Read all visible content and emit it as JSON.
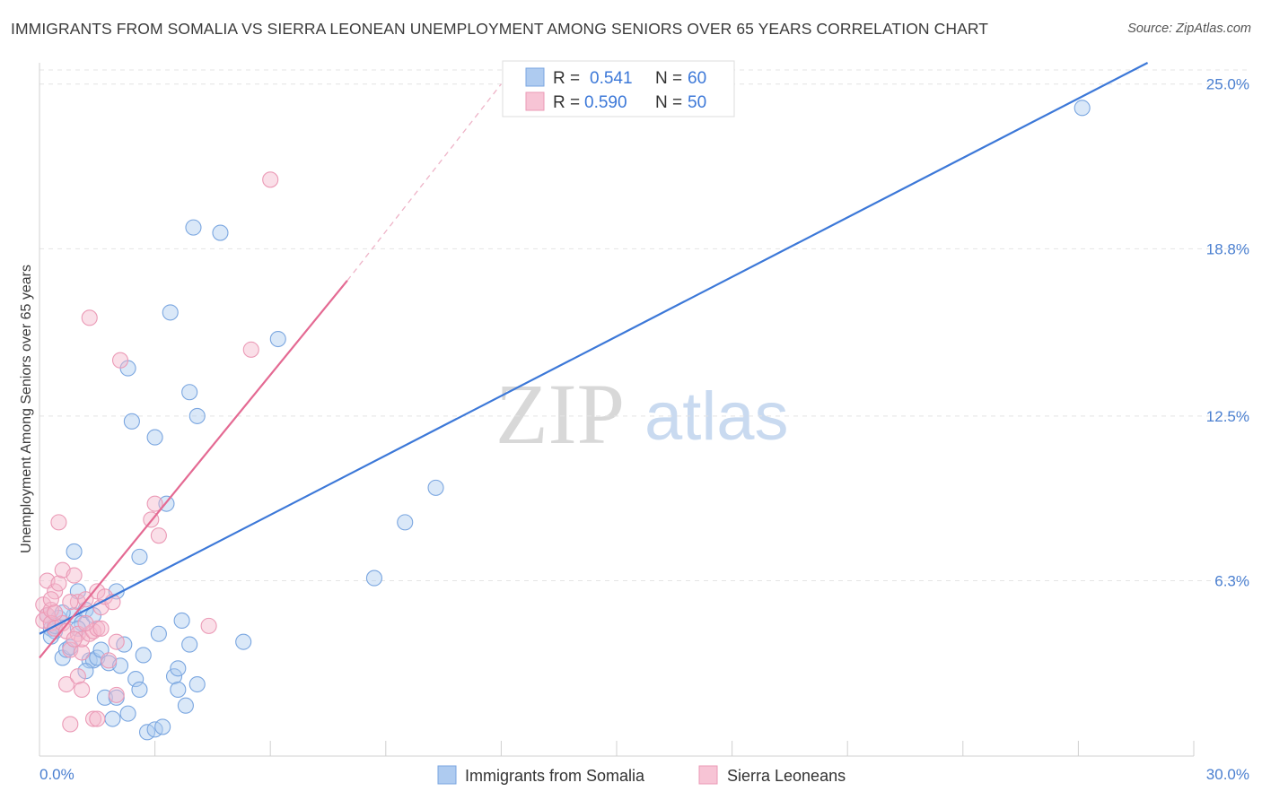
{
  "title": "IMMIGRANTS FROM SOMALIA VS SIERRA LEONEAN UNEMPLOYMENT AMONG SENIORS OVER 65 YEARS CORRELATION CHART",
  "source": "Source: ZipAtlas.com",
  "watermark": {
    "zip": "ZIP",
    "atlas": "atlas"
  },
  "colors": {
    "blue": "#3c78d8",
    "blue_fill": "#aecbf0",
    "pink": "#e46a93",
    "pink_fill": "#f5b8cc",
    "tick_text": "#4a7fd0"
  },
  "legend": {
    "r_label": "R =",
    "n_label": "N =",
    "series1_r": "0.541",
    "series1_n": "60",
    "series2_r": "0.590",
    "series2_n": "50"
  },
  "chart_data": {
    "type": "scatter",
    "title": "IMMIGRANTS FROM SOMALIA VS SIERRA LEONEAN UNEMPLOYMENT AMONG SENIORS OVER 65 YEARS CORRELATION CHART",
    "xlabel": "",
    "ylabel": "Unemployment Among Seniors over 65 years",
    "xlim": [
      0,
      30
    ],
    "ylim": [
      -0.3,
      25.8
    ],
    "x_tick_labels": [
      "0.0%",
      "30.0%"
    ],
    "y_ticks": [
      6.3,
      12.5,
      18.8,
      25.0
    ],
    "y_tick_labels": [
      "6.3%",
      "12.5%",
      "18.8%",
      "25.0%"
    ],
    "grid": true,
    "legend_position": "top-center",
    "series": [
      {
        "name": "Immigrants from Somalia",
        "color": "blue",
        "r": 0.541,
        "n": 60,
        "trendline": {
          "x": [
            0,
            28.8
          ],
          "y": [
            4.3,
            25.8
          ],
          "style": "solid"
        },
        "points": [
          [
            0.2,
            5.0
          ],
          [
            0.3,
            4.5
          ],
          [
            0.4,
            4.4
          ],
          [
            0.5,
            4.9
          ],
          [
            0.6,
            3.4
          ],
          [
            0.7,
            3.7
          ],
          [
            0.8,
            3.8
          ],
          [
            0.9,
            5.0
          ],
          [
            0.9,
            7.4
          ],
          [
            1.0,
            5.9
          ],
          [
            1.1,
            4.7
          ],
          [
            1.2,
            5.2
          ],
          [
            1.3,
            3.3
          ],
          [
            1.4,
            3.3
          ],
          [
            1.4,
            5.0
          ],
          [
            1.5,
            3.4
          ],
          [
            1.6,
            3.7
          ],
          [
            1.7,
            1.9
          ],
          [
            1.8,
            3.2
          ],
          [
            1.9,
            1.1
          ],
          [
            2.0,
            1.9
          ],
          [
            2.0,
            5.9
          ],
          [
            2.1,
            3.1
          ],
          [
            2.2,
            3.9
          ],
          [
            2.3,
            1.3
          ],
          [
            2.3,
            14.3
          ],
          [
            2.4,
            12.3
          ],
          [
            2.5,
            2.6
          ],
          [
            2.6,
            2.2
          ],
          [
            2.6,
            7.2
          ],
          [
            2.8,
            0.6
          ],
          [
            3.0,
            11.7
          ],
          [
            3.0,
            0.7
          ],
          [
            3.1,
            4.3
          ],
          [
            3.2,
            0.8
          ],
          [
            3.3,
            9.2
          ],
          [
            3.4,
            16.4
          ],
          [
            3.5,
            2.7
          ],
          [
            3.6,
            2.2
          ],
          [
            3.7,
            4.8
          ],
          [
            3.8,
            1.6
          ],
          [
            3.9,
            13.4
          ],
          [
            3.9,
            3.9
          ],
          [
            4.0,
            19.6
          ],
          [
            4.1,
            2.4
          ],
          [
            4.1,
            12.5
          ],
          [
            4.7,
            19.4
          ],
          [
            5.3,
            4.0
          ],
          [
            6.2,
            15.4
          ],
          [
            8.7,
            6.4
          ],
          [
            9.5,
            8.5
          ],
          [
            10.3,
            9.8
          ],
          [
            27.1,
            24.1
          ],
          [
            0.3,
            4.2
          ],
          [
            0.4,
            4.6
          ],
          [
            0.6,
            5.1
          ],
          [
            1.0,
            4.5
          ],
          [
            1.2,
            2.9
          ],
          [
            2.7,
            3.5
          ],
          [
            3.6,
            3.0
          ]
        ]
      },
      {
        "name": "Sierra Leoneans",
        "color": "pink",
        "r": 0.59,
        "n": 50,
        "trendline": {
          "x": [
            0,
            8.0
          ],
          "y": [
            3.4,
            17.6
          ],
          "style": "solid",
          "extension": {
            "x": [
              8.0,
              12.0
            ],
            "y": [
              17.6,
              25.0
            ],
            "style": "dashed"
          }
        },
        "points": [
          [
            0.1,
            4.8
          ],
          [
            0.1,
            5.4
          ],
          [
            0.2,
            5.0
          ],
          [
            0.2,
            6.3
          ],
          [
            0.3,
            5.2
          ],
          [
            0.3,
            4.7
          ],
          [
            0.4,
            5.9
          ],
          [
            0.4,
            4.5
          ],
          [
            0.5,
            6.2
          ],
          [
            0.5,
            8.5
          ],
          [
            0.6,
            6.7
          ],
          [
            0.6,
            4.7
          ],
          [
            0.7,
            2.4
          ],
          [
            0.7,
            4.4
          ],
          [
            0.8,
            0.9
          ],
          [
            0.8,
            3.7
          ],
          [
            0.9,
            6.5
          ],
          [
            1.0,
            4.3
          ],
          [
            1.0,
            5.5
          ],
          [
            1.0,
            2.7
          ],
          [
            1.1,
            3.6
          ],
          [
            1.1,
            4.1
          ],
          [
            1.2,
            5.6
          ],
          [
            1.3,
            4.3
          ],
          [
            1.4,
            4.4
          ],
          [
            1.4,
            1.1
          ],
          [
            1.5,
            5.9
          ],
          [
            1.5,
            4.5
          ],
          [
            1.5,
            1.1
          ],
          [
            1.6,
            4.5
          ],
          [
            1.6,
            5.3
          ],
          [
            1.7,
            5.7
          ],
          [
            1.8,
            3.3
          ],
          [
            1.9,
            5.5
          ],
          [
            2.0,
            4.0
          ],
          [
            2.0,
            2.0
          ],
          [
            2.1,
            14.6
          ],
          [
            2.9,
            8.6
          ],
          [
            3.0,
            9.2
          ],
          [
            3.1,
            8.0
          ],
          [
            4.4,
            4.6
          ],
          [
            5.5,
            15.0
          ],
          [
            6.0,
            21.4
          ],
          [
            1.3,
            16.2
          ],
          [
            0.3,
            5.6
          ],
          [
            0.8,
            5.5
          ],
          [
            1.2,
            4.7
          ],
          [
            0.4,
            5.1
          ],
          [
            0.9,
            4.1
          ],
          [
            1.1,
            2.2
          ]
        ]
      }
    ]
  },
  "bottom_legend": {
    "series1": "Immigrants from Somalia",
    "series2": "Sierra Leoneans"
  }
}
